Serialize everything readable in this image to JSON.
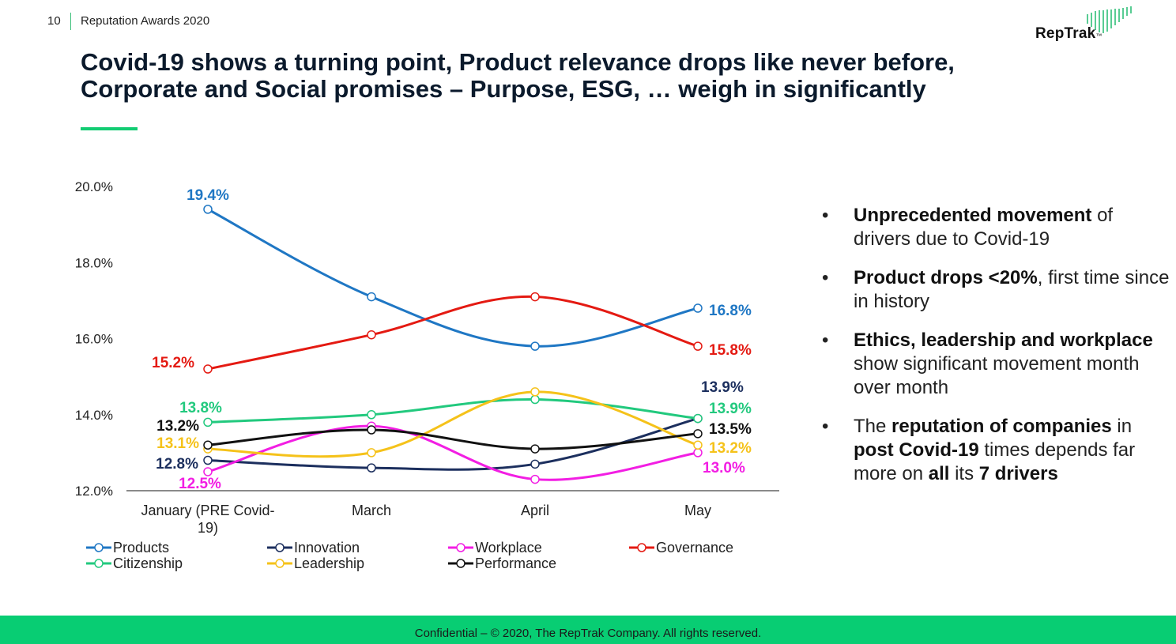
{
  "header": {
    "page_number": "10",
    "deck_title": "Reputation Awards 2020",
    "logo_text": "RepTrak",
    "logo_tm": "™"
  },
  "headline": {
    "line1": "Covid-19 shows a turning point, Product relevance drops like never before,",
    "line2": "Corporate and Social promises – Purpose, ESG, … weigh in significantly"
  },
  "colors": {
    "accent_green": "#12cc72",
    "footer_green": "#08cd73",
    "products": "#1f77c4",
    "innovation": "#1c2f5e",
    "workplace": "#f21ee3",
    "governance": "#e41a12",
    "citizenship": "#22c97e",
    "leadership": "#f5c21a",
    "performance": "#111111"
  },
  "chart_data": {
    "type": "line",
    "categories": [
      "January (PRE Covid-19)",
      "March",
      "April",
      "May"
    ],
    "ylim": [
      12.0,
      20.0
    ],
    "yticks": [
      "12.0%",
      "14.0%",
      "16.0%",
      "18.0%",
      "20.0%"
    ],
    "series": [
      {
        "name": "Products",
        "key": "products",
        "values": [
          19.4,
          17.1,
          15.8,
          16.8
        ],
        "labels": [
          "19.4%",
          "16.8%"
        ]
      },
      {
        "name": "Innovation",
        "key": "innovation",
        "values": [
          12.8,
          12.6,
          12.7,
          13.9
        ],
        "labels": [
          "12.8%",
          "13.9%"
        ]
      },
      {
        "name": "Workplace",
        "key": "workplace",
        "values": [
          12.5,
          13.7,
          12.3,
          13.0
        ],
        "labels": [
          "12.5%",
          "13.0%"
        ]
      },
      {
        "name": "Governance",
        "key": "governance",
        "values": [
          15.2,
          16.1,
          17.1,
          15.8
        ],
        "labels": [
          "15.2%",
          "15.8%"
        ]
      },
      {
        "name": "Citizenship",
        "key": "citizenship",
        "values": [
          13.8,
          14.0,
          14.4,
          13.9
        ],
        "labels": [
          "13.8%",
          "13.9%"
        ]
      },
      {
        "name": "Leadership",
        "key": "leadership",
        "values": [
          13.1,
          13.0,
          14.6,
          13.2
        ],
        "labels": [
          "13.1%",
          "13.2%"
        ]
      },
      {
        "name": "Performance",
        "key": "performance",
        "values": [
          13.2,
          13.6,
          13.1,
          13.5
        ],
        "labels": [
          "13.2%",
          "13.5%"
        ]
      }
    ]
  },
  "bullets": [
    {
      "bold": "Unprecedented movement",
      "rest": " of drivers due to Covid-19"
    },
    {
      "bold": "Product drops <20%",
      "rest": ", first time since in history"
    },
    {
      "bold": "Ethics, leadership and workplace",
      "rest": " show significant movement month over month"
    },
    {
      "pre": "The ",
      "bold": "reputation of companies",
      "rest": " in ",
      "bold2": "post Covid-19",
      "rest2": " times depends far more on ",
      "bold3": "all",
      "rest3": " its ",
      "bold4": "7 drivers"
    }
  ],
  "bullet_symbol": "•",
  "footer": {
    "text": "Confidential – © 2020, The RepTrak Company. All rights reserved."
  }
}
